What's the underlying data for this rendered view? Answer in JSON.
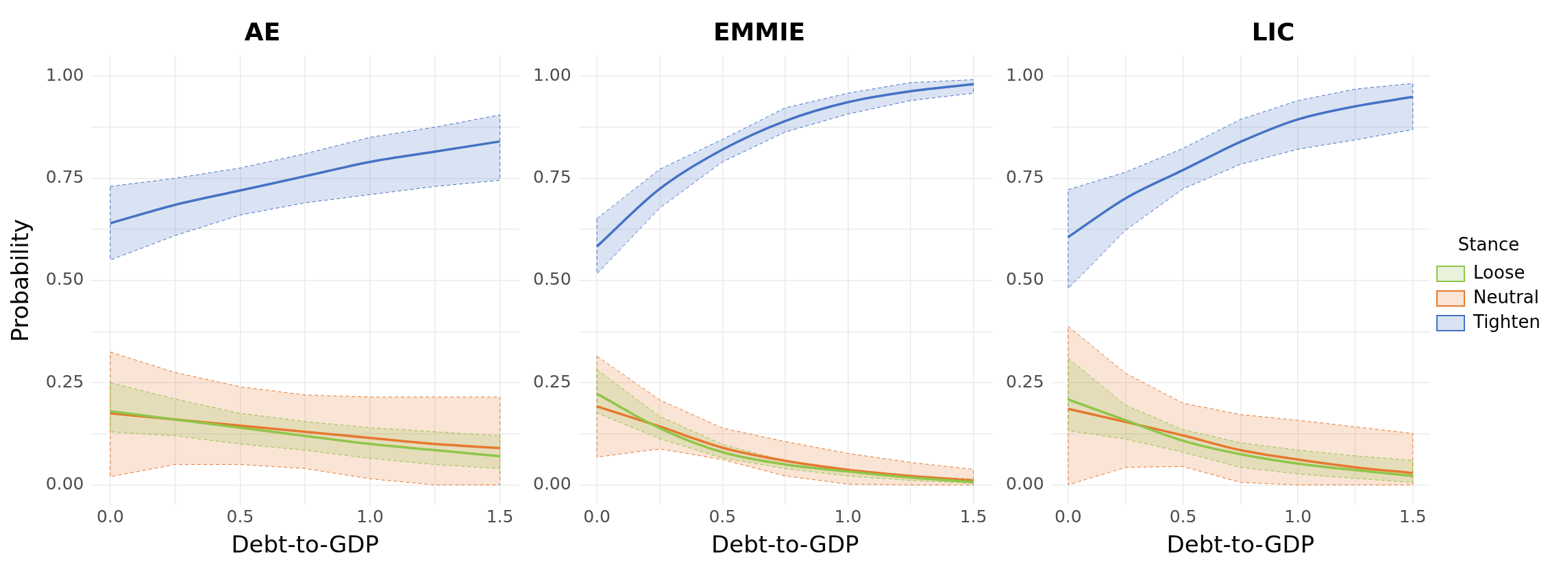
{
  "chart_data": [
    {
      "type": "line",
      "title": "AE",
      "xlabel": "Debt-to-GDP",
      "ylabel": "Probability",
      "x": [
        0,
        0.25,
        0.5,
        0.75,
        1,
        1.25,
        1.5
      ],
      "xlim": [
        -0.075,
        1.575
      ],
      "ylim": [
        -0.05,
        1.05
      ],
      "xticks": [
        {
          "value": 0,
          "label": "0.0"
        },
        {
          "value": 0.25,
          "label": null
        },
        {
          "value": 0.5,
          "label": "0.5"
        },
        {
          "value": 0.75,
          "label": null
        },
        {
          "value": 1,
          "label": "1.0"
        },
        {
          "value": 1.25,
          "label": null
        },
        {
          "value": 1.5,
          "label": "1.5"
        }
      ],
      "yticks": [
        {
          "value": 0,
          "label": "0.00"
        },
        {
          "value": 0.125,
          "label": null
        },
        {
          "value": 0.25,
          "label": "0.25"
        },
        {
          "value": 0.375,
          "label": null
        },
        {
          "value": 0.5,
          "label": "0.50"
        },
        {
          "value": 0.625,
          "label": null
        },
        {
          "value": 0.75,
          "label": "0.75"
        },
        {
          "value": 0.875,
          "label": null
        },
        {
          "value": 1,
          "label": "1.00"
        }
      ],
      "grid": true,
      "legend": false,
      "series": [
        {
          "color": "#8fc54a",
          "values": [
            0.18,
            0.16,
            0.14,
            0.12,
            0.1,
            0.085,
            0.07
          ],
          "lower": [
            0.13,
            0.12,
            0.1,
            0.085,
            0.065,
            0.05,
            0.04
          ],
          "upper": [
            0.25,
            0.21,
            0.175,
            0.155,
            0.14,
            0.13,
            0.12
          ]
        },
        {
          "color": "#e6782f",
          "values": [
            0.175,
            0.16,
            0.145,
            0.13,
            0.115,
            0.1,
            0.09
          ],
          "lower": [
            0.02,
            0.05,
            0.05,
            0.04,
            0.015,
            0,
            0
          ],
          "upper": [
            0.325,
            0.275,
            0.24,
            0.22,
            0.215,
            0.215,
            0.215
          ]
        },
        {
          "color": "#4472c4",
          "values": [
            0.64,
            0.685,
            0.72,
            0.755,
            0.79,
            0.815,
            0.84
          ],
          "lower": [
            0.55,
            0.61,
            0.66,
            0.69,
            0.71,
            0.73,
            0.745
          ],
          "upper": [
            0.73,
            0.75,
            0.775,
            0.81,
            0.85,
            0.875,
            0.905
          ]
        }
      ]
    },
    {
      "type": "line",
      "title": "EMMIE",
      "xlabel": "Debt-to-GDP",
      "x": [
        0,
        0.25,
        0.5,
        0.75,
        1,
        1.25,
        1.5
      ],
      "xlim": [
        -0.075,
        1.575
      ],
      "ylim": [
        -0.05,
        1.05
      ],
      "xticks": [
        {
          "value": 0,
          "label": "0.0"
        },
        {
          "value": 0.25,
          "label": null
        },
        {
          "value": 0.5,
          "label": "0.5"
        },
        {
          "value": 0.75,
          "label": null
        },
        {
          "value": 1,
          "label": "1.0"
        },
        {
          "value": 1.25,
          "label": null
        },
        {
          "value": 1.5,
          "label": "1.5"
        }
      ],
      "yticks": [
        {
          "value": 0,
          "label": "0.00"
        },
        {
          "value": 0.125,
          "label": null
        },
        {
          "value": 0.25,
          "label": "0.25"
        },
        {
          "value": 0.375,
          "label": null
        },
        {
          "value": 0.5,
          "label": "0.50"
        },
        {
          "value": 0.625,
          "label": null
        },
        {
          "value": 0.75,
          "label": "0.75"
        },
        {
          "value": 0.875,
          "label": null
        },
        {
          "value": 1,
          "label": "1.00"
        }
      ],
      "grid": true,
      "legend": false,
      "series": [
        {
          "color": "#8fc54a",
          "values": [
            0.223,
            0.139,
            0.08,
            0.05,
            0.033,
            0.018,
            0.007
          ],
          "lower": [
            0.176,
            0.113,
            0.066,
            0.04,
            0.022,
            0.011,
            0.004
          ],
          "upper": [
            0.282,
            0.168,
            0.099,
            0.059,
            0.033,
            0.02,
            0.015
          ]
        },
        {
          "color": "#e6782f",
          "values": [
            0.192,
            0.143,
            0.091,
            0.059,
            0.037,
            0.022,
            0.011
          ],
          "lower": [
            0.068,
            0.088,
            0.062,
            0.022,
            0.002,
            0,
            0
          ],
          "upper": [
            0.315,
            0.208,
            0.139,
            0.106,
            0.077,
            0.055,
            0.038
          ]
        },
        {
          "color": "#4472c4",
          "values": [
            0.583,
            0.724,
            0.82,
            0.89,
            0.936,
            0.963,
            0.98
          ],
          "lower": [
            0.516,
            0.677,
            0.79,
            0.863,
            0.907,
            0.94,
            0.958
          ],
          "upper": [
            0.651,
            0.772,
            0.845,
            0.922,
            0.958,
            0.984,
            0.991
          ]
        }
      ]
    },
    {
      "type": "line",
      "title": "LIC",
      "xlabel": "Debt-to-GDP",
      "legend_title": "Stance",
      "x": [
        0,
        0.25,
        0.5,
        0.75,
        1,
        1.25,
        1.5
      ],
      "xlim": [
        -0.075,
        1.575
      ],
      "ylim": [
        -0.05,
        1.05
      ],
      "xticks": [
        {
          "value": 0,
          "label": "0.0"
        },
        {
          "value": 0.25,
          "label": null
        },
        {
          "value": 0.5,
          "label": "0.5"
        },
        {
          "value": 0.75,
          "label": null
        },
        {
          "value": 1,
          "label": "1.0"
        },
        {
          "value": 1.25,
          "label": null
        },
        {
          "value": 1.5,
          "label": "1.5"
        }
      ],
      "yticks": [
        {
          "value": 0,
          "label": "0.00"
        },
        {
          "value": 0.125,
          "label": null
        },
        {
          "value": 0.25,
          "label": "0.25"
        },
        {
          "value": 0.375,
          "label": null
        },
        {
          "value": 0.5,
          "label": "0.50"
        },
        {
          "value": 0.625,
          "label": null
        },
        {
          "value": 0.75,
          "label": "0.75"
        },
        {
          "value": 0.875,
          "label": null
        },
        {
          "value": 1,
          "label": "1.00"
        }
      ],
      "grid": true,
      "legend": "right",
      "series": [
        {
          "name": "Loose",
          "color": "#8fc54a",
          "values": [
            0.209,
            0.158,
            0.108,
            0.075,
            0.052,
            0.036,
            0.022
          ],
          "lower": [
            0.133,
            0.112,
            0.08,
            0.043,
            0.027,
            0.016,
            0.006
          ],
          "upper": [
            0.31,
            0.195,
            0.135,
            0.103,
            0.085,
            0.071,
            0.06
          ]
        },
        {
          "name": "Neutral",
          "color": "#e6782f",
          "values": [
            0.186,
            0.154,
            0.121,
            0.085,
            0.062,
            0.043,
            0.029
          ],
          "lower": [
            0,
            0.043,
            0.045,
            0.006,
            0,
            0,
            0
          ],
          "upper": [
            0.388,
            0.273,
            0.2,
            0.172,
            0.158,
            0.142,
            0.126
          ]
        },
        {
          "name": "Tighten",
          "color": "#4472c4",
          "values": [
            0.606,
            0.701,
            0.77,
            0.839,
            0.894,
            0.926,
            0.949
          ],
          "lower": [
            0.48,
            0.623,
            0.724,
            0.784,
            0.821,
            0.844,
            0.869
          ],
          "upper": [
            0.722,
            0.765,
            0.823,
            0.894,
            0.94,
            0.968,
            0.982
          ]
        }
      ]
    }
  ]
}
